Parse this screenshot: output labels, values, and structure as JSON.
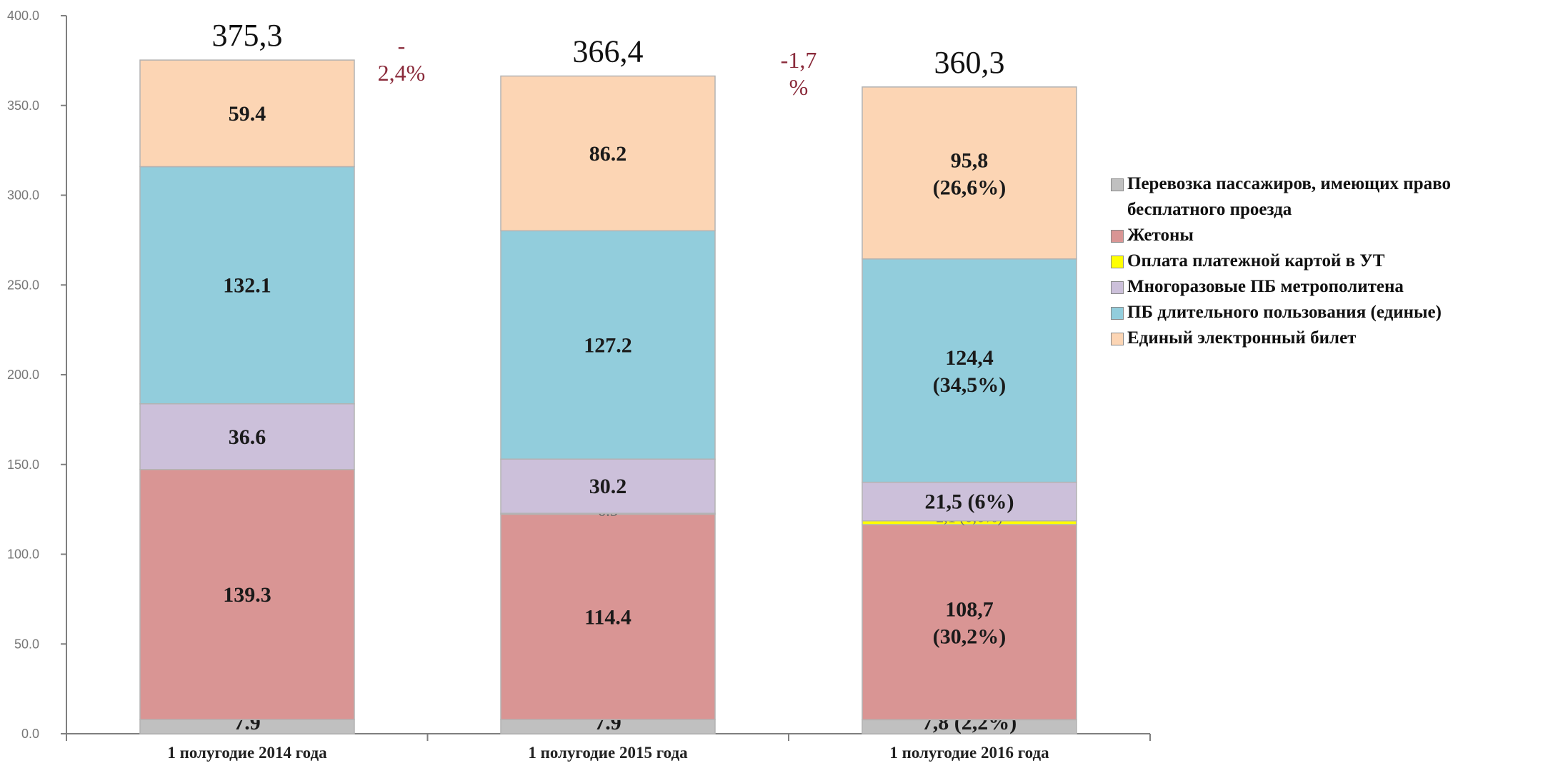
{
  "chart_data": {
    "type": "bar",
    "stacked": true,
    "categories": [
      "1 полугодие 2014 года",
      "1 полугодие 2015 года",
      "1 полугодие 2016 года"
    ],
    "ylim": [
      0,
      400
    ],
    "yticks": [
      "0.0",
      "50.0",
      "100.0",
      "150.0",
      "200.0",
      "250.0",
      "300.0",
      "350.0",
      "400.0"
    ],
    "grid": false,
    "legend_position": "right",
    "series": [
      {
        "name": "Перевозка пассажиров, имеющих право бесплатного проезда",
        "color": "#c0c0c0",
        "values": [
          7.9,
          7.9,
          7.8
        ],
        "labels": [
          "7.9",
          "7.9",
          "7,8 (2,2%)"
        ]
      },
      {
        "name": "Жетоны",
        "color": "#d99594",
        "values": [
          139.3,
          114.4,
          108.7
        ],
        "labels": [
          "139.3",
          "114.4",
          "108,7\n(30,2%)"
        ]
      },
      {
        "name": "Оплата платежной картой в УТ",
        "color": "#ffff00",
        "values": [
          0,
          0.5,
          2.1
        ],
        "labels": [
          "",
          "0.5",
          "2,1 (0,6%)"
        ]
      },
      {
        "name": "Многоразовые ПБ метрополитена",
        "color": "#ccc0da",
        "values": [
          36.6,
          30.2,
          21.5
        ],
        "labels": [
          "36.6",
          "30.2",
          "21,5 (6%)"
        ]
      },
      {
        "name": "ПБ длительного пользования (единые)",
        "color": "#92cddc",
        "values": [
          132.1,
          127.2,
          124.4
        ],
        "labels": [
          "132.1",
          "127.2",
          "124,4\n(34,5%)"
        ]
      },
      {
        "name": "Единый электронный билет",
        "color": "#fcd5b4",
        "values": [
          59.4,
          86.2,
          95.8
        ],
        "labels": [
          "59.4",
          "86.2",
          "95,8\n(26,6%)"
        ]
      }
    ],
    "totals": [
      "375,3",
      "366,4",
      "360,3"
    ],
    "changes": [
      "-\n2,4%",
      "-1,7\n%"
    ]
  }
}
